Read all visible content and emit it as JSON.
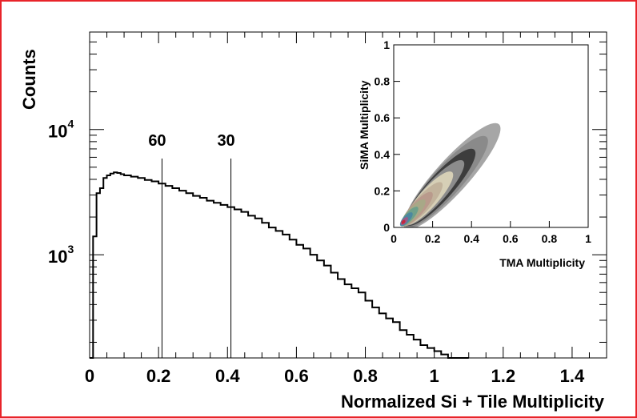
{
  "chart_data": [
    {
      "type": "line",
      "xlabel": "Normalized Si + Tile Multiplicity",
      "ylabel": "Counts",
      "xlim": [
        0,
        1.5
      ],
      "ylim": [
        150,
        60000
      ],
      "yscale": "log",
      "grid": false,
      "x_ticks": [
        "0",
        "0.2",
        "0.4",
        "0.6",
        "0.8",
        "1",
        "1.2",
        "1.4"
      ],
      "y_ticks": [
        {
          "value": 1000,
          "base": "10",
          "exp": "3"
        },
        {
          "value": 10000,
          "base": "10",
          "exp": "4"
        }
      ],
      "series": [
        {
          "x": [
            0.0,
            0.01,
            0.02,
            0.03,
            0.04,
            0.05,
            0.06,
            0.07,
            0.08,
            0.09,
            0.1,
            0.12,
            0.14,
            0.16,
            0.18,
            0.2,
            0.22,
            0.24,
            0.26,
            0.28,
            0.3,
            0.32,
            0.34,
            0.36,
            0.38,
            0.4,
            0.42,
            0.44,
            0.46,
            0.48,
            0.5,
            0.52,
            0.54,
            0.56,
            0.58,
            0.6,
            0.62,
            0.64,
            0.66,
            0.68,
            0.7,
            0.72,
            0.74,
            0.76,
            0.78,
            0.8,
            0.82,
            0.84,
            0.86,
            0.88,
            0.9,
            0.92,
            0.94,
            0.96,
            0.98,
            1.0,
            1.02,
            1.04,
            1.06,
            1.08
          ],
          "values": [
            150,
            1400,
            3100,
            3400,
            4100,
            4300,
            4450,
            4550,
            4500,
            4400,
            4300,
            4200,
            4100,
            3950,
            3850,
            3700,
            3550,
            3400,
            3250,
            3100,
            2950,
            2850,
            2700,
            2600,
            2500,
            2400,
            2300,
            2200,
            2050,
            1950,
            1800,
            1650,
            1550,
            1450,
            1320,
            1200,
            1120,
            1000,
            900,
            820,
            720,
            640,
            580,
            540,
            500,
            430,
            380,
            340,
            310,
            290,
            250,
            230,
            210,
            190,
            180,
            170,
            160,
            150,
            150,
            150
          ]
        }
      ],
      "annotations": [
        {
          "label": "60",
          "x": 0.21
        },
        {
          "label": "30",
          "x": 0.41
        }
      ]
    },
    {
      "type": "heatmap",
      "xlabel": "TMA Multiplicity",
      "ylabel": "SiMA Multiplicity",
      "xlim": [
        0,
        1
      ],
      "ylim": [
        0,
        1
      ],
      "x_ticks": [
        "0",
        "0.2",
        "0.4",
        "0.6",
        "0.8",
        "1"
      ],
      "y_ticks": [
        "0",
        "0.2",
        "0.4",
        "0.6",
        "0.8",
        "1"
      ],
      "contour_peak": [
        0.05,
        0.03
      ],
      "contour_colors": [
        "#a6a6a6",
        "#8a8a8a",
        "#3d3d3d",
        "#8c8c8c",
        "#d6cfb6",
        "#c2b39c",
        "#b99a8c",
        "#a8a887",
        "#6fa08a",
        "#4c88a0",
        "#9a5b8a",
        "#c4283c"
      ]
    }
  ]
}
